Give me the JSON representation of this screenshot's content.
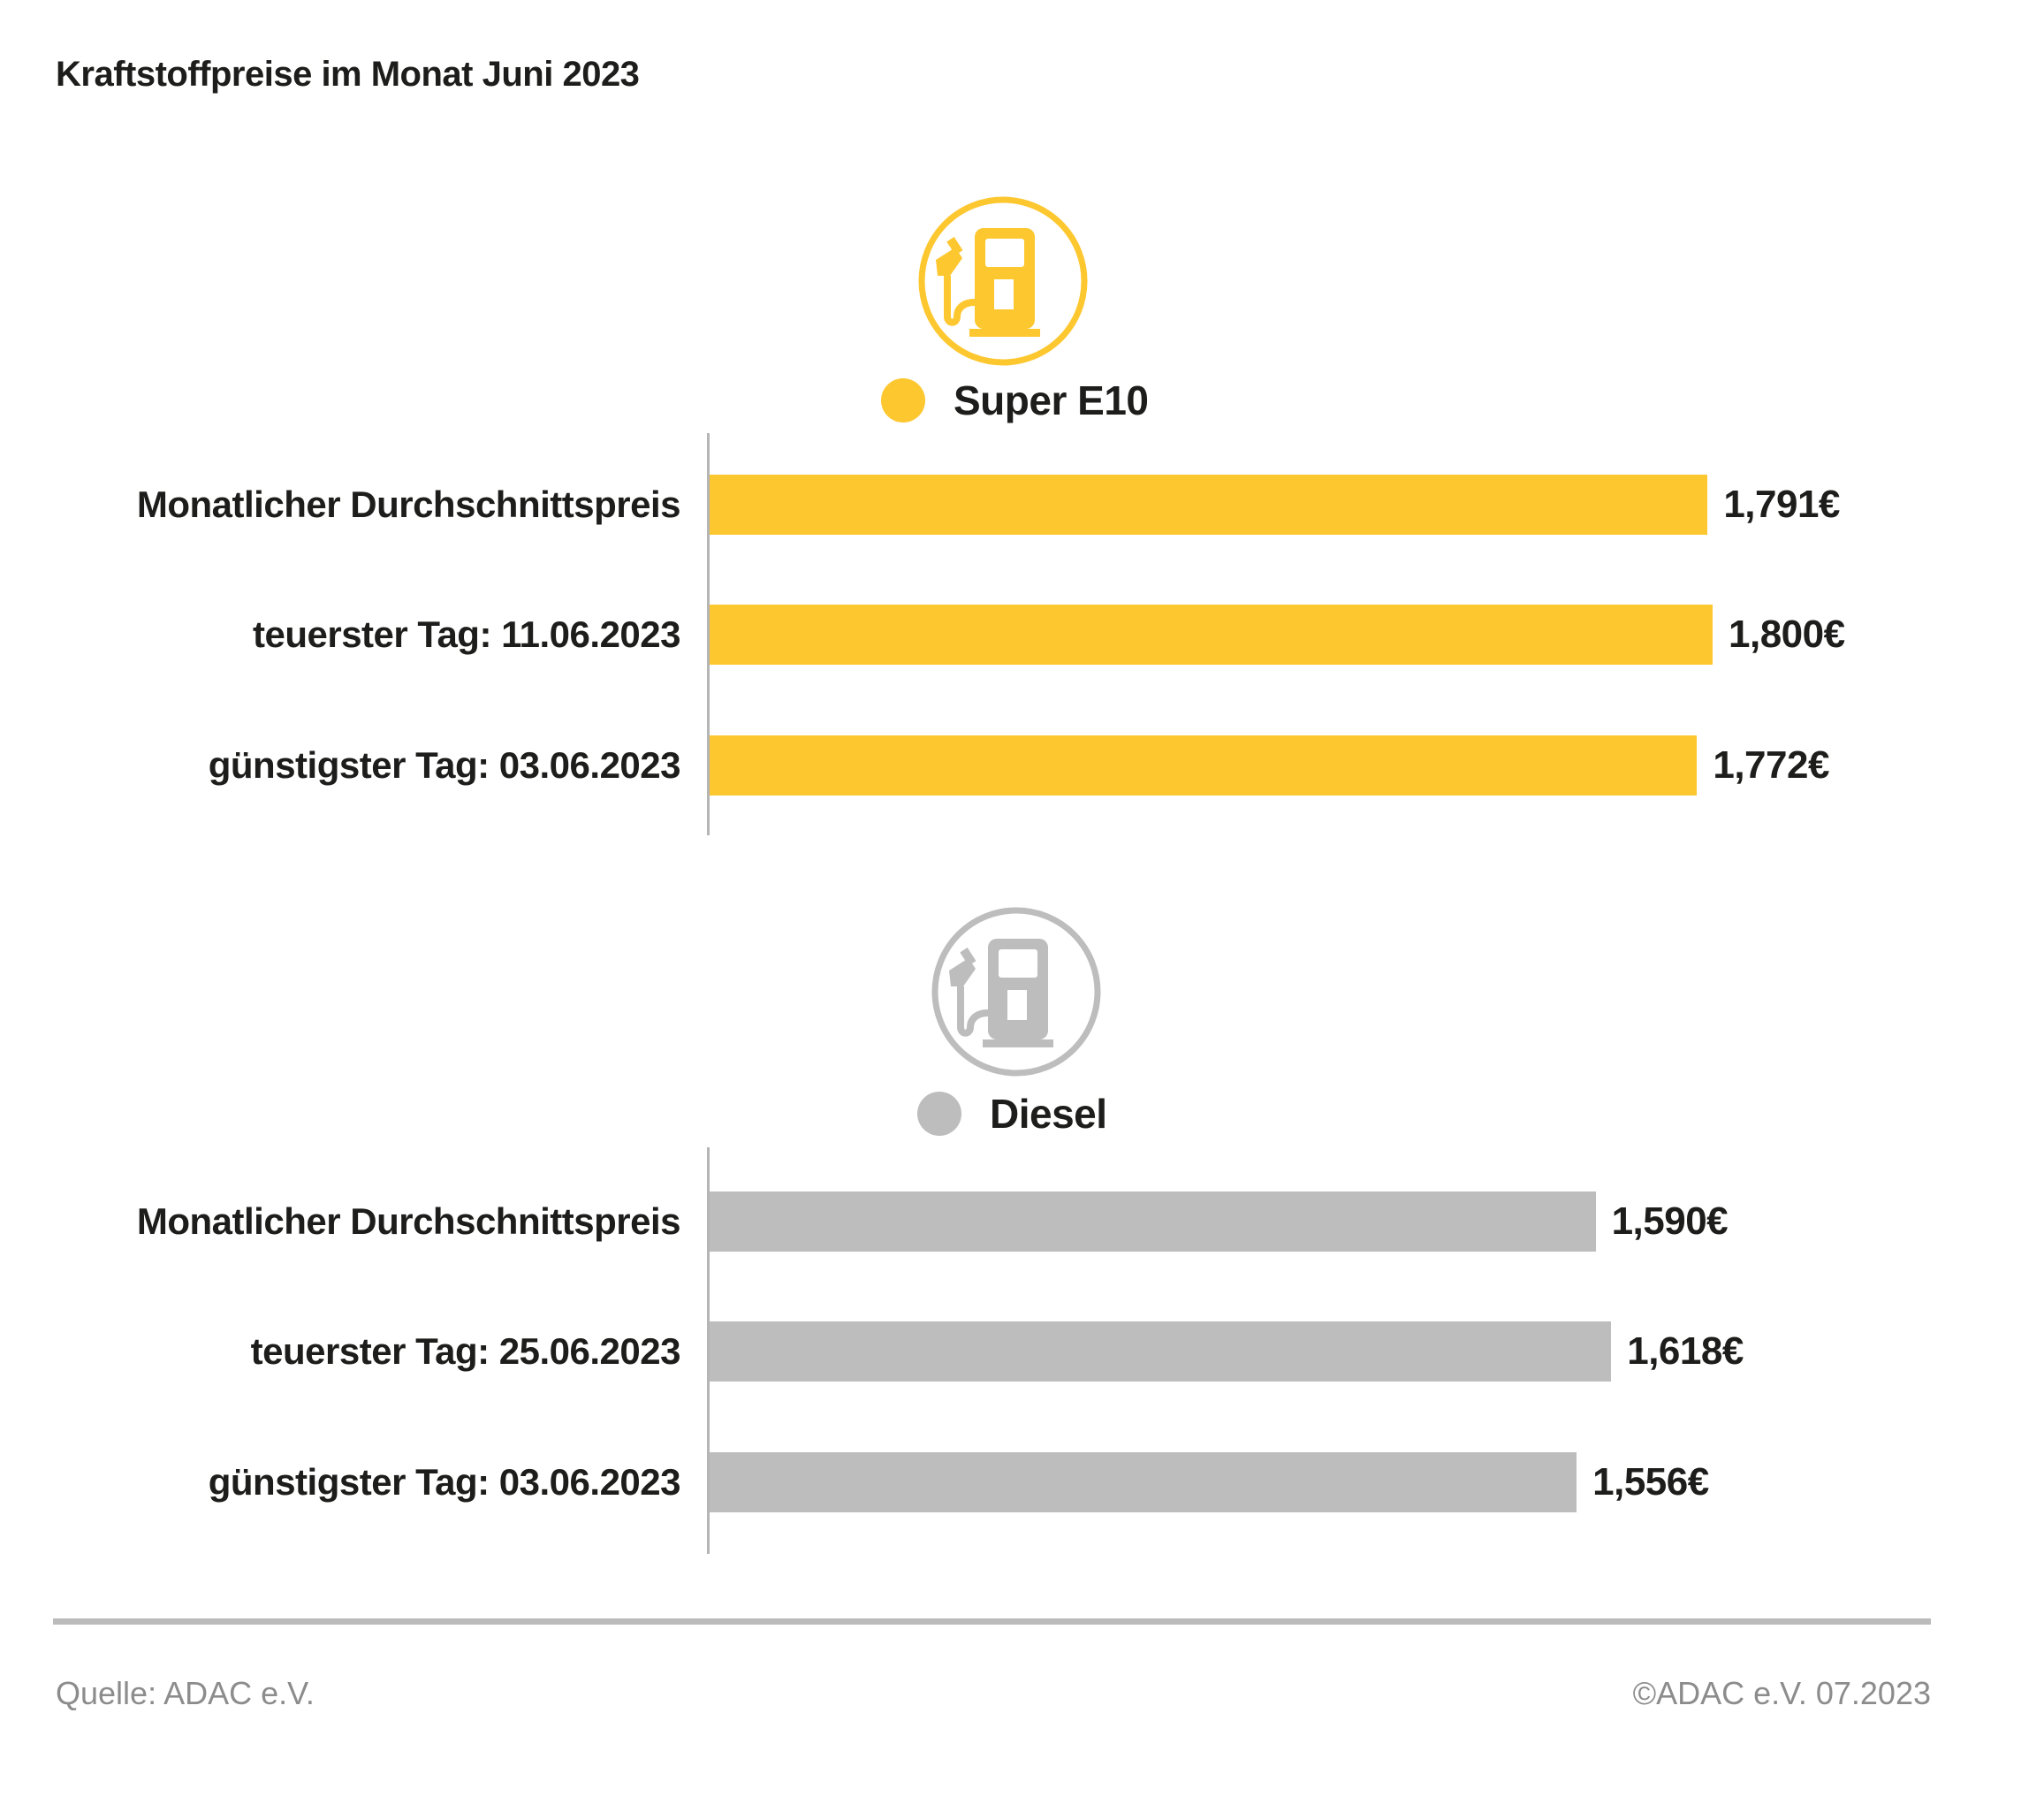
{
  "title": "Kraftstoffpreise im Monat Juni 2023",
  "colors": {
    "super_e10": "#FDC72F",
    "diesel": "#BDBDBD",
    "text": "#1D1D1B",
    "muted_text": "#8C8C8C",
    "axis_line": "#B5B5B5",
    "divider": "#BBBBBB"
  },
  "chart_data": [
    {
      "type": "bar",
      "orientation": "horizontal",
      "series_name": "Super E10",
      "icon": "fuel-pump-icon",
      "color": "#FDC72F",
      "categories": [
        "Monatlicher Durchschnittspreis",
        "teuerster Tag: 11.06.2023",
        "günstigster Tag: 03.06.2023"
      ],
      "values": [
        1.791,
        1.8,
        1.772
      ],
      "value_labels": [
        "1,791€",
        "1,800€",
        "1,772€"
      ],
      "xlim": [
        0,
        1.8
      ],
      "grid": false,
      "legend_position": "top-center"
    },
    {
      "type": "bar",
      "orientation": "horizontal",
      "series_name": "Diesel",
      "icon": "fuel-pump-icon",
      "color": "#BDBDBD",
      "categories": [
        "Monatlicher Durchschnittspreis",
        "teuerster Tag: 25.06.2023",
        "günstigster Tag: 03.06.2023"
      ],
      "values": [
        1.59,
        1.618,
        1.556
      ],
      "value_labels": [
        "1,590€",
        "1,618€",
        "1,556€"
      ],
      "xlim": [
        0,
        1.8
      ],
      "grid": false,
      "legend_position": "top-center"
    }
  ],
  "footer": {
    "source": "Quelle: ADAC e.V.",
    "copyright": "©ADAC e.V. 07.2023"
  }
}
